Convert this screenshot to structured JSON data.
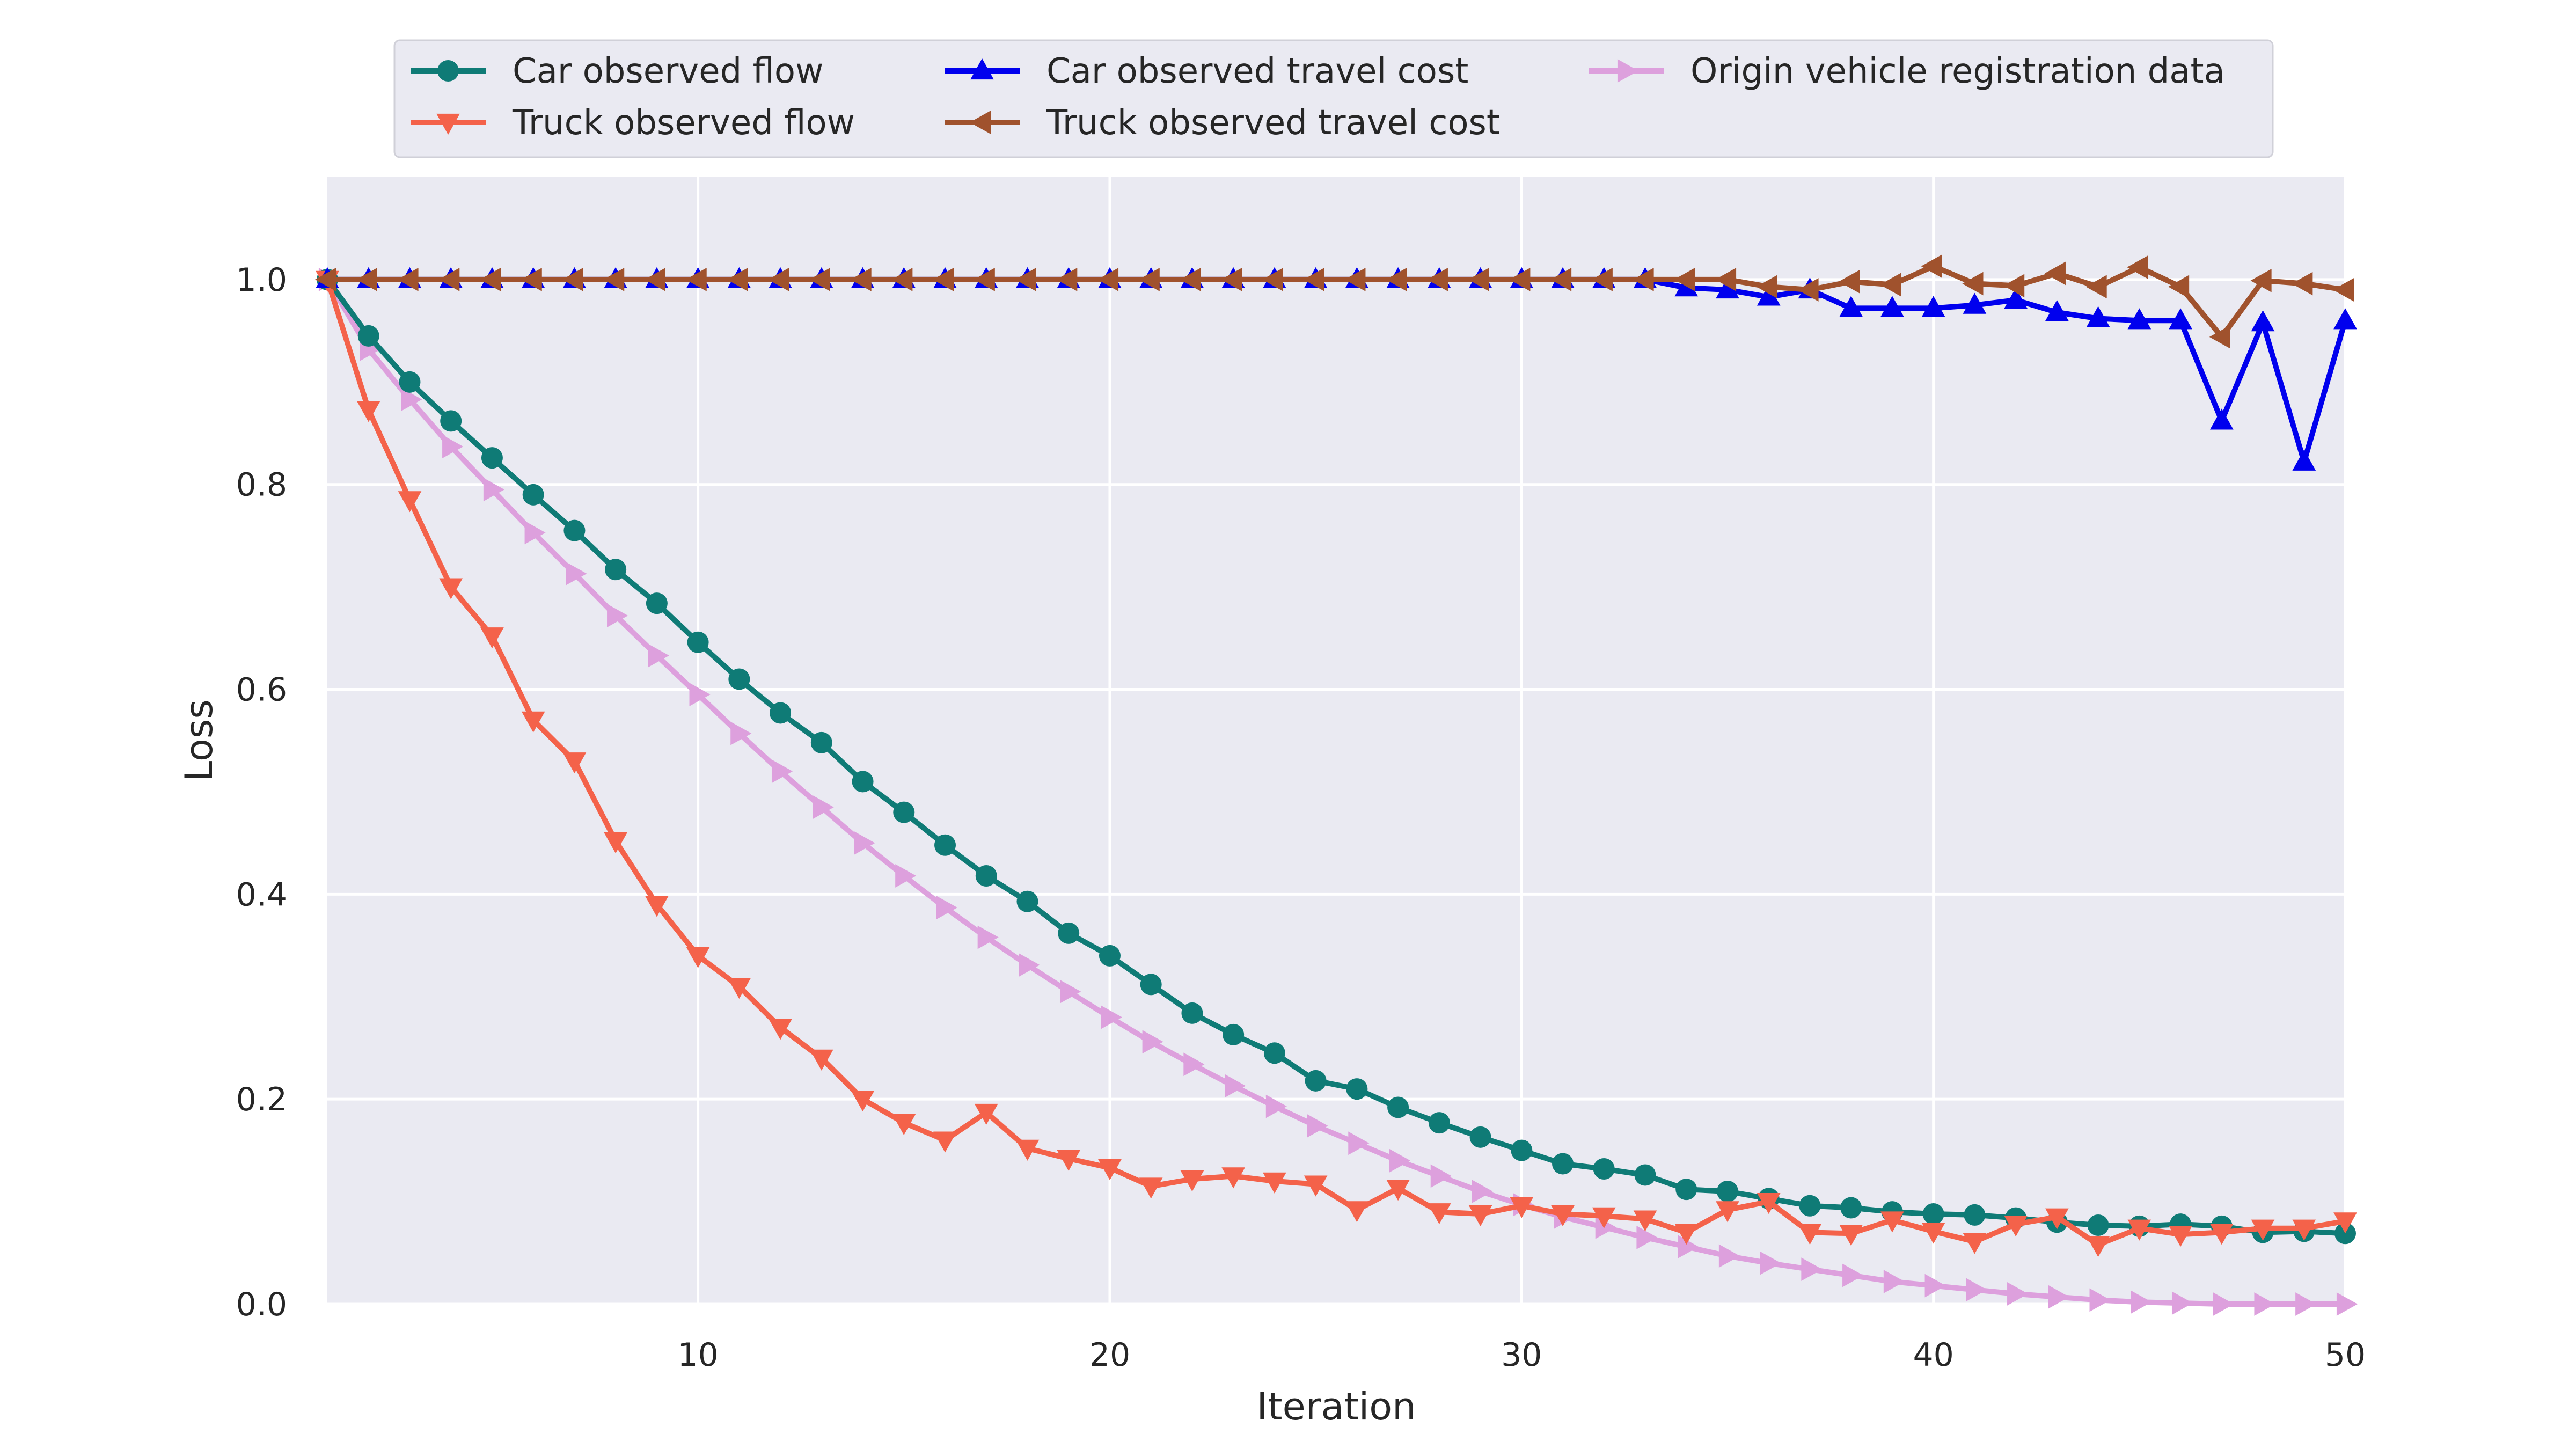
{
  "chart_data": {
    "type": "line",
    "title": "",
    "xlabel": "Iteration",
    "ylabel": "Loss",
    "xlim": [
      1,
      50
    ],
    "ylim": [
      0.0,
      1.1
    ],
    "xticks": [
      10,
      20,
      30,
      40,
      50
    ],
    "yticks": [
      0.0,
      0.2,
      0.4,
      0.6,
      0.8,
      1.0
    ],
    "ytick_labels": [
      "0.0",
      "0.2",
      "0.4",
      "0.6",
      "0.8",
      "1.0"
    ],
    "grid": true,
    "legend": {
      "placement": "top-center",
      "columns": 3
    },
    "x": [
      1,
      2,
      3,
      4,
      5,
      6,
      7,
      8,
      9,
      10,
      11,
      12,
      13,
      14,
      15,
      16,
      17,
      18,
      19,
      20,
      21,
      22,
      23,
      24,
      25,
      26,
      27,
      28,
      29,
      30,
      31,
      32,
      33,
      34,
      35,
      36,
      37,
      38,
      39,
      40,
      41,
      42,
      43,
      44,
      45,
      46,
      47,
      48,
      49,
      50
    ],
    "series": [
      {
        "name": "Car observed flow",
        "color": "#0f7b76",
        "marker": "circle",
        "values": [
          1.0,
          0.945,
          0.9,
          0.862,
          0.826,
          0.79,
          0.755,
          0.717,
          0.684,
          0.646,
          0.61,
          0.577,
          0.548,
          0.51,
          0.48,
          0.448,
          0.418,
          0.393,
          0.362,
          0.34,
          0.312,
          0.284,
          0.263,
          0.245,
          0.218,
          0.21,
          0.192,
          0.177,
          0.163,
          0.15,
          0.137,
          0.132,
          0.126,
          0.112,
          0.11,
          0.103,
          0.096,
          0.094,
          0.09,
          0.088,
          0.087,
          0.084,
          0.08,
          0.077,
          0.076,
          0.078,
          0.076,
          0.07,
          0.071,
          0.069
        ]
      },
      {
        "name": "Truck observed flow",
        "color": "#f4624a",
        "marker": "triangle-down",
        "values": [
          1.0,
          0.873,
          0.785,
          0.7,
          0.652,
          0.57,
          0.53,
          0.452,
          0.39,
          0.34,
          0.31,
          0.27,
          0.24,
          0.2,
          0.177,
          0.16,
          0.187,
          0.152,
          0.142,
          0.133,
          0.115,
          0.122,
          0.125,
          0.12,
          0.117,
          0.092,
          0.113,
          0.09,
          0.088,
          0.096,
          0.088,
          0.086,
          0.083,
          0.07,
          0.092,
          0.1,
          0.07,
          0.069,
          0.082,
          0.071,
          0.061,
          0.078,
          0.085,
          0.058,
          0.074,
          0.068,
          0.07,
          0.074,
          0.074,
          0.081
        ]
      },
      {
        "name": "Car observed travel cost",
        "color": "#0000ee",
        "marker": "triangle-up",
        "values": [
          1.0,
          1.0,
          1.0,
          1.0,
          1.0,
          1.0,
          1.0,
          1.0,
          1.0,
          1.0,
          1.0,
          1.0,
          1.0,
          1.0,
          1.0,
          1.0,
          1.0,
          1.0,
          1.0,
          1.0,
          1.0,
          1.0,
          1.0,
          1.0,
          1.0,
          1.0,
          1.0,
          1.0,
          1.0,
          1.0,
          1.0,
          1.0,
          1.0,
          0.992,
          0.99,
          0.983,
          0.99,
          0.972,
          0.972,
          0.972,
          0.975,
          0.98,
          0.968,
          0.962,
          0.96,
          0.96,
          0.862,
          0.958,
          0.822,
          0.96
        ]
      },
      {
        "name": "Truck observed travel cost",
        "color": "#a0522d",
        "marker": "triangle-left",
        "values": [
          1.0,
          1.0,
          1.0,
          1.0,
          1.0,
          1.0,
          1.0,
          1.0,
          1.0,
          1.0,
          1.0,
          1.0,
          1.0,
          1.0,
          1.0,
          1.0,
          1.0,
          1.0,
          1.0,
          1.0,
          1.0,
          1.0,
          1.0,
          1.0,
          1.0,
          1.0,
          1.0,
          1.0,
          1.0,
          1.0,
          1.0,
          1.0,
          1.0,
          1.0,
          1.0,
          0.993,
          0.99,
          0.998,
          0.995,
          1.013,
          0.996,
          0.994,
          1.006,
          0.993,
          1.012,
          0.993,
          0.944,
          0.999,
          0.996,
          0.99
        ]
      },
      {
        "name": "Origin vehicle registration data",
        "color": "#dda0dd",
        "marker": "triangle-right",
        "values": [
          1.0,
          0.932,
          0.883,
          0.837,
          0.795,
          0.753,
          0.713,
          0.672,
          0.633,
          0.595,
          0.557,
          0.52,
          0.485,
          0.45,
          0.418,
          0.387,
          0.358,
          0.331,
          0.305,
          0.28,
          0.256,
          0.234,
          0.213,
          0.193,
          0.174,
          0.157,
          0.14,
          0.125,
          0.11,
          0.097,
          0.085,
          0.075,
          0.065,
          0.056,
          0.047,
          0.04,
          0.034,
          0.028,
          0.022,
          0.018,
          0.014,
          0.01,
          0.007,
          0.004,
          0.002,
          0.001,
          0.0,
          0.0,
          0.0,
          0.0
        ]
      }
    ]
  }
}
